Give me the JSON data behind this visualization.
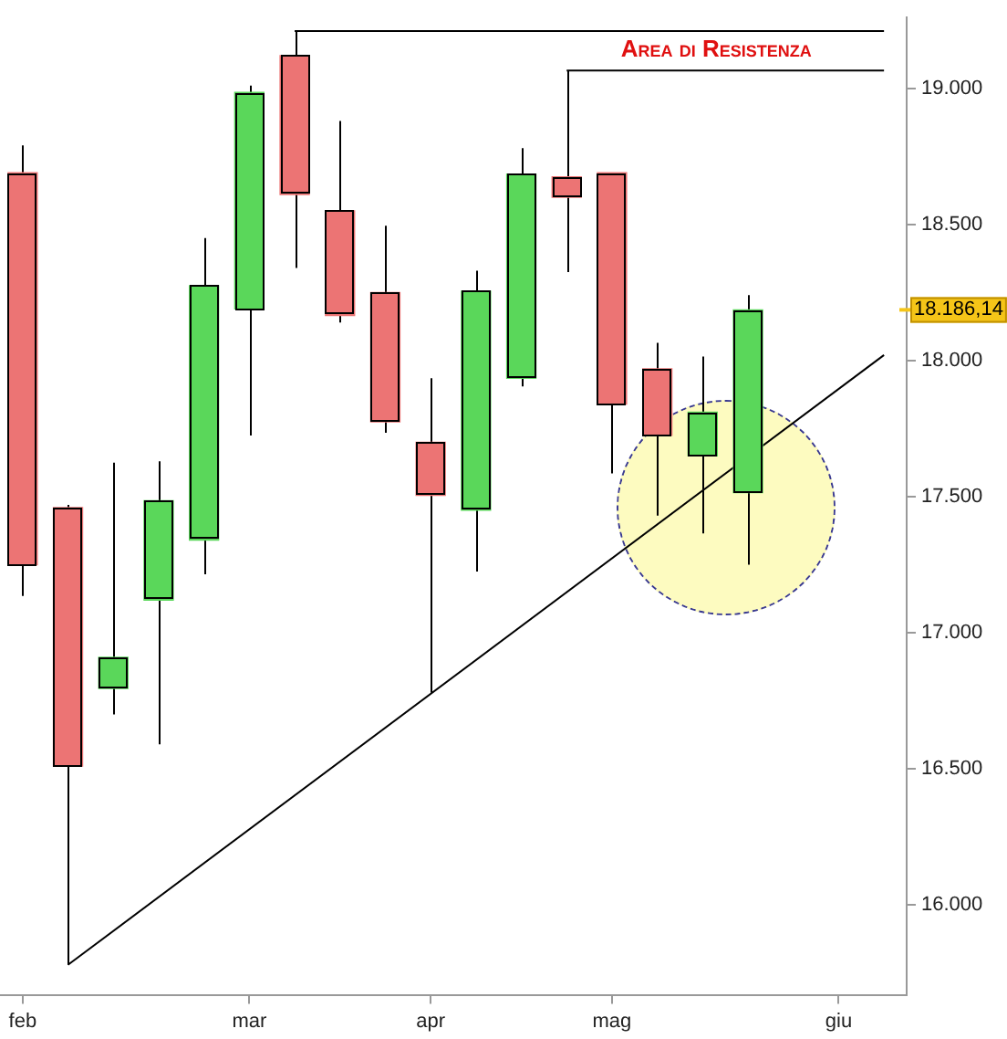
{
  "chart_data": {
    "type": "candlestick",
    "annotations": [
      "Area di Resistenza",
      "18.186,14"
    ],
    "categories": [
      "feb",
      null,
      null,
      null,
      null,
      "mar",
      null,
      null,
      null,
      "apr",
      null,
      null,
      null,
      "mag",
      null,
      null,
      null,
      null,
      "giu",
      null
    ],
    "ohlc": [
      [
        18690,
        18790,
        17135,
        17250
      ],
      [
        17460,
        17470,
        15780,
        16510
      ],
      [
        16795,
        17625,
        16700,
        16910
      ],
      [
        17120,
        17630,
        16590,
        17485
      ],
      [
        17340,
        18450,
        17215,
        18275
      ],
      [
        18190,
        19010,
        17725,
        18985
      ],
      [
        19120,
        19210,
        18340,
        18610
      ],
      [
        18550,
        18880,
        18140,
        18165
      ],
      [
        18250,
        18495,
        17735,
        17775
      ],
      [
        17700,
        17935,
        16780,
        17505
      ],
      [
        17450,
        18330,
        17225,
        18255
      ],
      [
        17935,
        18780,
        17905,
        18685
      ],
      [
        18675,
        19065,
        18325,
        18600
      ],
      [
        18690,
        18690,
        17585,
        17840
      ],
      [
        17970,
        18065,
        17430,
        17725
      ],
      [
        17650,
        18015,
        17365,
        17810
      ],
      [
        17515,
        18240,
        17250,
        18186.14
      ],
      null,
      null,
      null
    ],
    "colors": [
      "#ec7474",
      "#ec7474",
      "#5ad75a",
      "#5ad75a",
      "#5ad75a",
      "#5ad75a",
      "#ec7474",
      "#ec7474",
      "#ec7474",
      "#ec7474",
      "#5ad75a",
      "#5ad75a",
      "#ec7474",
      "#ec7474",
      "#ec7474",
      "#5ad75a",
      "#5ad75a",
      null,
      null,
      null
    ],
    "series": [
      {
        "type": "line",
        "values": [
          null,
          15780,
          null,
          null,
          null,
          null,
          null,
          null,
          null,
          null,
          null,
          null,
          null,
          null,
          null,
          null,
          null,
          null,
          null,
          18020
        ],
        "color": "#000000"
      },
      {
        "type": "line",
        "values": [
          null,
          null,
          null,
          null,
          null,
          null,
          19210,
          null,
          null,
          null,
          null,
          null,
          null,
          null,
          null,
          null,
          null,
          null,
          null,
          19210
        ],
        "color": "#000000"
      },
      {
        "type": "line",
        "values": [
          null,
          null,
          null,
          null,
          null,
          null,
          null,
          null,
          null,
          null,
          null,
          null,
          19065,
          null,
          null,
          null,
          null,
          null,
          null,
          19065
        ],
        "color": "#000000"
      }
    ],
    "ylim": [
      15670,
      19260
    ],
    "yticks": [
      {
        "value": 16000,
        "label": "16.000"
      },
      {
        "value": 16500,
        "label": "16.500"
      },
      {
        "value": 17000,
        "label": "17.000"
      },
      {
        "value": 17500,
        "label": "17.500"
      },
      {
        "value": 18000,
        "label": "18.000"
      },
      {
        "value": 18500,
        "label": "18.500"
      },
      {
        "value": 19000,
        "label": "19.000"
      }
    ],
    "grid": false,
    "legend": false
  }
}
